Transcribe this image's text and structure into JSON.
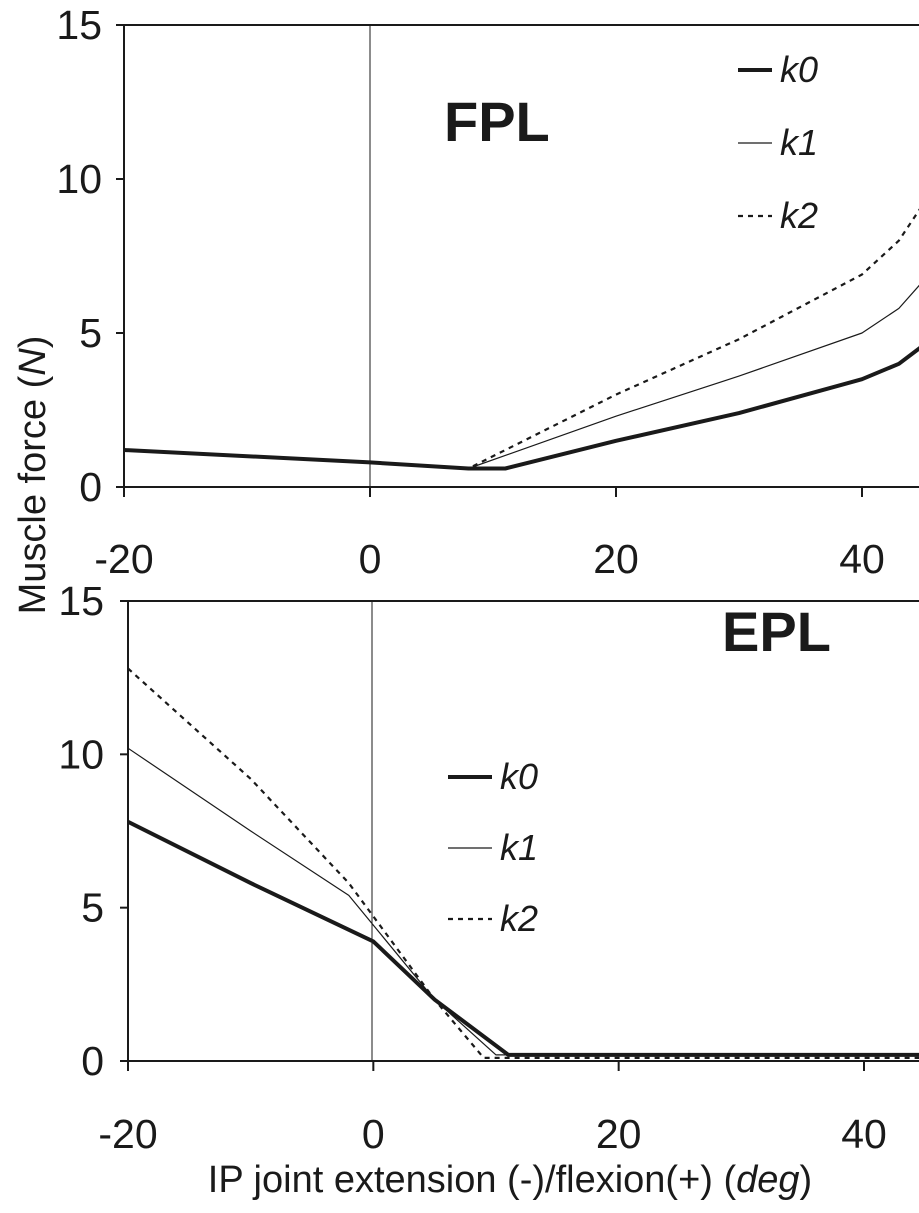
{
  "chart_data": [
    {
      "type": "line",
      "panel_label": "FPL",
      "xlim": [
        -20,
        45
      ],
      "ylim": [
        0,
        15
      ],
      "xticks": [
        -20,
        0,
        20,
        40
      ],
      "yticks": [
        0,
        5,
        10,
        15
      ],
      "xtick_labels": [
        "-20",
        "0",
        "20",
        "40"
      ],
      "ytick_labels": [
        "0",
        "5",
        "10",
        "15"
      ],
      "legend_position": "top-right",
      "grid": false,
      "series": [
        {
          "name": "k0",
          "style": "thick-solid",
          "x": [
            -20,
            0,
            8,
            11,
            20,
            30,
            40,
            43,
            45
          ],
          "y": [
            1.2,
            0.8,
            0.6,
            0.6,
            1.5,
            2.4,
            3.5,
            4.0,
            4.6
          ]
        },
        {
          "name": "k1",
          "style": "thin-solid",
          "x": [
            -20,
            0,
            8,
            20,
            30,
            40,
            43,
            45
          ],
          "y": [
            1.2,
            0.8,
            0.6,
            2.3,
            3.6,
            5.0,
            5.8,
            6.7
          ]
        },
        {
          "name": "k2",
          "style": "dotted",
          "x": [
            -20,
            0,
            8,
            20,
            30,
            40,
            43,
            45
          ],
          "y": [
            1.2,
            0.8,
            0.6,
            3.0,
            4.8,
            6.9,
            8.0,
            9.2
          ]
        }
      ]
    },
    {
      "type": "line",
      "panel_label": "EPL",
      "xlim": [
        -20,
        45
      ],
      "ylim": [
        0,
        15
      ],
      "xticks": [
        -20,
        0,
        20,
        40
      ],
      "yticks": [
        0,
        5,
        10,
        15
      ],
      "xtick_labels": [
        "-20",
        "0",
        "20",
        "40"
      ],
      "ytick_labels": [
        "0",
        "5",
        "10",
        "15"
      ],
      "xlabel_parts": [
        "IP joint extension (-)/flexion(+) (",
        "deg",
        ")"
      ],
      "legend_position": "center-left",
      "grid": false,
      "series": [
        {
          "name": "k0",
          "style": "thick-solid",
          "x": [
            -20,
            -10,
            0,
            5,
            11,
            20,
            45
          ],
          "y": [
            7.8,
            5.8,
            3.9,
            2.0,
            0.2,
            0.2,
            0.2
          ]
        },
        {
          "name": "k1",
          "style": "thin-solid",
          "x": [
            -20,
            -10,
            -2,
            5,
            10,
            20,
            45
          ],
          "y": [
            10.2,
            7.5,
            5.4,
            2.0,
            0.2,
            0.2,
            0.2
          ]
        },
        {
          "name": "k2",
          "style": "dotted",
          "x": [
            -20,
            -10,
            -2,
            5,
            9,
            20,
            45
          ],
          "y": [
            12.8,
            9.2,
            5.8,
            2.0,
            0.1,
            0.1,
            0.1
          ]
        }
      ]
    }
  ],
  "ylabel_parts": [
    "Muscle force (",
    "N",
    ")"
  ]
}
